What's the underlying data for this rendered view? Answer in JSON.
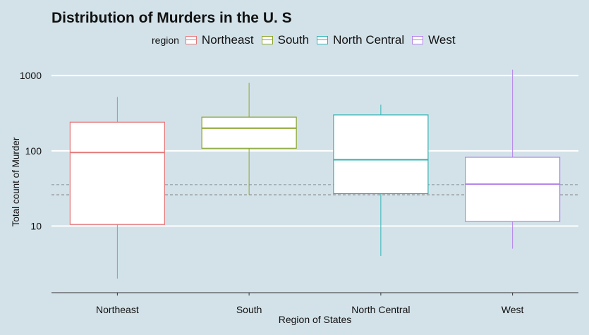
{
  "chart_data": {
    "type": "boxplot",
    "title": "Distribution of Murders in the U. S",
    "xlabel": "Region of States",
    "ylabel": "Total count of Murder",
    "y_scale": "log10",
    "ylim": [
      1.3,
      1300
    ],
    "y_ticks": [
      10,
      100,
      1000
    ],
    "y_tick_labels": [
      "10",
      "100",
      "1000"
    ],
    "legend": {
      "title": "region",
      "position": "top"
    },
    "categories": [
      "Northeast",
      "South",
      "North Central",
      "West"
    ],
    "series": [
      {
        "name": "Northeast",
        "color": "#e5787a",
        "min": 2,
        "q1": 10.5,
        "median": 95,
        "q3": 240,
        "max": 520
      },
      {
        "name": "South",
        "color": "#8aa42a",
        "min": 26,
        "q1": 108,
        "median": 200,
        "q3": 280,
        "max": 800
      },
      {
        "name": "North Central",
        "color": "#2db5b5",
        "min": 4,
        "q1": 27,
        "median": 76,
        "q3": 300,
        "max": 410
      },
      {
        "name": "West",
        "color": "#b382ea",
        "min": 5,
        "q1": 11.5,
        "median": 36,
        "q3": 82,
        "max": 1200
      }
    ],
    "reference_lines": [
      {
        "y": 35.5,
        "style": "dashed",
        "color": "#9aa7ad"
      },
      {
        "y": 26,
        "style": "dashed",
        "color": "#888888"
      }
    ],
    "grid": {
      "major_y": true,
      "color": "#ffffff"
    }
  }
}
